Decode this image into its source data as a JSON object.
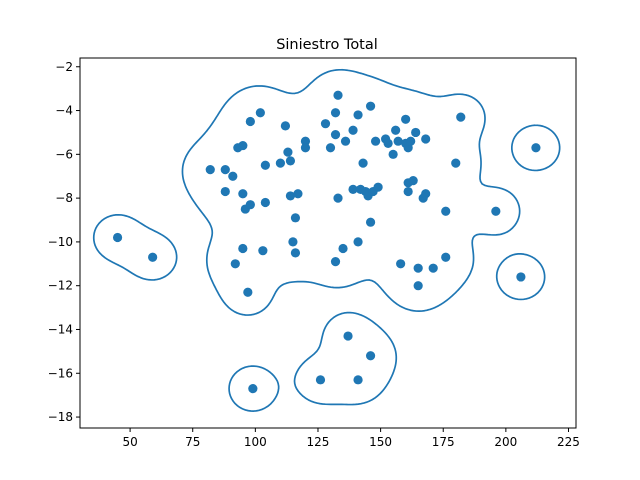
{
  "chart_data": {
    "type": "scatter",
    "title": "Siniestro Total",
    "xlabel": "",
    "ylabel": "",
    "xlim": [
      30,
      228
    ],
    "ylim": [
      -18.5,
      -1.6
    ],
    "x_ticks": [
      50,
      75,
      100,
      125,
      150,
      175,
      200,
      225
    ],
    "y_ticks": [
      -2,
      -4,
      -6,
      -8,
      -10,
      -12,
      -14,
      -16,
      -18
    ],
    "grid": false,
    "color": "#1f77b4",
    "points": [
      [
        45,
        -9.8
      ],
      [
        59,
        -10.7
      ],
      [
        82,
        -6.7
      ],
      [
        88,
        -6.7
      ],
      [
        88,
        -7.7
      ],
      [
        91,
        -7.0
      ],
      [
        93,
        -5.7
      ],
      [
        95,
        -5.6
      ],
      [
        95,
        -7.8
      ],
      [
        96,
        -8.5
      ],
      [
        98,
        -8.3
      ],
      [
        98,
        -4.5
      ],
      [
        102,
        -4.1
      ],
      [
        104,
        -6.5
      ],
      [
        104,
        -8.2
      ],
      [
        92,
        -11.0
      ],
      [
        95,
        -10.3
      ],
      [
        97,
        -12.3
      ],
      [
        103,
        -10.4
      ],
      [
        110,
        -6.4
      ],
      [
        112,
        -4.7
      ],
      [
        113,
        -5.9
      ],
      [
        114,
        -6.3
      ],
      [
        114,
        -7.9
      ],
      [
        116,
        -8.9
      ],
      [
        115,
        -10.0
      ],
      [
        116,
        -10.5
      ],
      [
        117,
        -7.8
      ],
      [
        120,
        -5.4
      ],
      [
        120,
        -5.7
      ],
      [
        128,
        -4.6
      ],
      [
        130,
        -5.7
      ],
      [
        132,
        -4.1
      ],
      [
        132,
        -5.1
      ],
      [
        133,
        -3.3
      ],
      [
        133,
        -8.0
      ],
      [
        135,
        -10.3
      ],
      [
        136,
        -5.4
      ],
      [
        139,
        -4.9
      ],
      [
        139,
        -7.6
      ],
      [
        141,
        -4.2
      ],
      [
        142,
        -7.6
      ],
      [
        143,
        -6.4
      ],
      [
        144,
        -7.7
      ],
      [
        145,
        -7.9
      ],
      [
        146,
        -3.8
      ],
      [
        146,
        -9.1
      ],
      [
        147,
        -7.7
      ],
      [
        148,
        -5.4
      ],
      [
        149,
        -7.5
      ],
      [
        141,
        -10.0
      ],
      [
        132,
        -10.9
      ],
      [
        152,
        -5.3
      ],
      [
        153,
        -5.5
      ],
      [
        155,
        -6.0
      ],
      [
        156,
        -4.9
      ],
      [
        157,
        -5.4
      ],
      [
        158,
        -11.0
      ],
      [
        160,
        -4.4
      ],
      [
        160,
        -5.5
      ],
      [
        161,
        -5.7
      ],
      [
        161,
        -7.3
      ],
      [
        161,
        -7.7
      ],
      [
        162,
        -5.4
      ],
      [
        163,
        -7.2
      ],
      [
        164,
        -5.0
      ],
      [
        165,
        -11.2
      ],
      [
        165,
        -12.0
      ],
      [
        167,
        -8.0
      ],
      [
        168,
        -5.3
      ],
      [
        168,
        -7.8
      ],
      [
        171,
        -11.2
      ],
      [
        176,
        -8.6
      ],
      [
        176,
        -10.7
      ],
      [
        180,
        -6.4
      ],
      [
        182,
        -4.3
      ],
      [
        196,
        -8.6
      ],
      [
        206,
        -11.6
      ],
      [
        212,
        -5.7
      ],
      [
        137,
        -14.3
      ],
      [
        146,
        -15.2
      ],
      [
        126,
        -16.3
      ],
      [
        141,
        -16.3
      ],
      [
        99,
        -16.7
      ]
    ]
  }
}
